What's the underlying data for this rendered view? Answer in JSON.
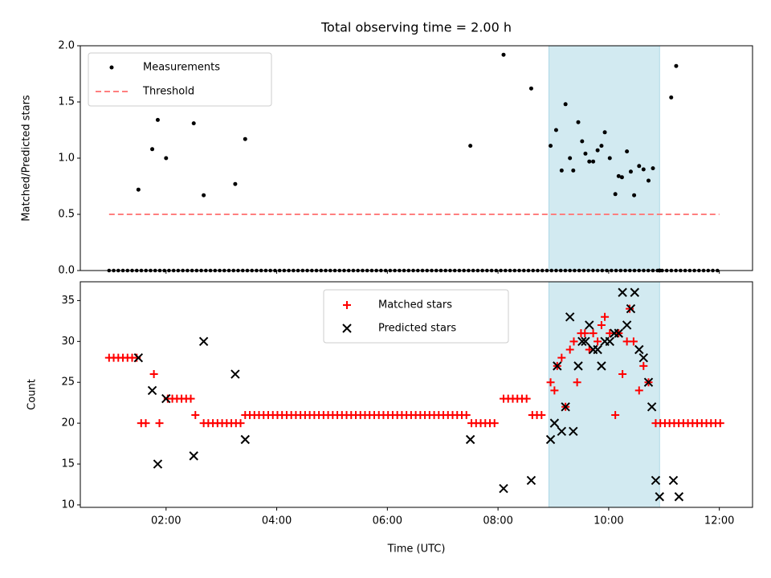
{
  "chart_data": [
    {
      "type": "scatter",
      "title": "Total observing time = 2.00 h",
      "xlabel": "",
      "ylabel": "Matched/Predicted stars",
      "xlim": [
        0.45,
        12.6
      ],
      "ylim": [
        0,
        2.0
      ],
      "yticks": [
        0.0,
        0.5,
        1.0,
        1.5,
        2.0
      ],
      "ytick_labels": [
        "0.0",
        "0.5",
        "1.0",
        "1.5",
        "2.0"
      ],
      "grid": false,
      "legend_position": "top-left",
      "legend": [
        "Measurements",
        "Threshold"
      ],
      "shaded_interval": [
        8.92,
        10.92
      ],
      "colors": {
        "shade": "#add8e6",
        "points": "#000000",
        "threshold": "#ff7f7f"
      },
      "threshold": {
        "name": "Threshold",
        "x": [
          0.97,
          12.0
        ],
        "y": 0.5
      },
      "series": [
        {
          "name": "Measurements",
          "x": [
            1.5,
            1.75,
            1.85,
            2.0,
            2.5,
            2.68,
            3.25,
            3.43,
            7.5,
            8.1,
            8.6,
            8.95,
            9.05,
            9.15,
            9.22,
            9.3,
            9.36,
            9.45,
            9.52,
            9.58,
            9.65,
            9.72,
            9.8,
            9.87,
            9.93,
            10.02,
            10.12,
            10.18,
            10.24,
            10.33,
            10.4,
            10.46,
            10.55,
            10.63,
            10.72,
            10.8,
            10.92,
            11.13,
            11.22
          ],
          "y": [
            0.72,
            1.08,
            1.34,
            1.0,
            1.31,
            0.67,
            0.77,
            1.17,
            1.11,
            1.92,
            1.62,
            1.11,
            1.25,
            0.89,
            1.48,
            1.0,
            0.89,
            1.32,
            1.15,
            1.04,
            0.97,
            0.97,
            1.07,
            1.11,
            1.23,
            1.0,
            0.68,
            0.84,
            0.83,
            1.06,
            0.88,
            0.67,
            0.93,
            0.9,
            0.8,
            0.91,
            0.0,
            1.54,
            1.82
          ]
        },
        {
          "name": "Measurements (zero values)",
          "x_start": 0.97,
          "x_end": 12.0,
          "x_step": 0.0833,
          "y": 0.0
        }
      ]
    },
    {
      "type": "scatter",
      "title": "",
      "xlabel": "Time (UTC)",
      "ylabel": "Count",
      "xlim": [
        0.45,
        12.6
      ],
      "ylim": [
        9.7,
        37.3
      ],
      "xticks": [
        2,
        4,
        6,
        8,
        10,
        12
      ],
      "xtick_labels": [
        "02:00",
        "04:00",
        "06:00",
        "08:00",
        "10:00",
        "12:00"
      ],
      "yticks": [
        10,
        15,
        20,
        25,
        30,
        35
      ],
      "ytick_labels": [
        "10",
        "15",
        "20",
        "25",
        "30",
        "35"
      ],
      "grid": false,
      "legend_position": "top-center",
      "legend": [
        "Matched stars",
        "Predicted stars"
      ],
      "shaded_interval": [
        8.92,
        10.92
      ],
      "colors": {
        "shade": "#add8e6",
        "matched": "#ff0000",
        "predicted": "#000000"
      },
      "series": [
        {
          "name": "Matched stars",
          "constant_runs": [
            {
              "x_start": 0.97,
              "x_end": 1.47,
              "y": 28
            },
            {
              "x_start": 1.55,
              "x_end": 1.7,
              "y": 20
            },
            {
              "x_start": 1.88,
              "x_end": 1.95,
              "y": 20
            },
            {
              "x_start": 2.03,
              "x_end": 2.45,
              "y": 23
            },
            {
              "x_start": 2.53,
              "x_end": 2.6,
              "y": 21
            },
            {
              "x_start": 2.68,
              "x_end": 3.38,
              "y": 20
            },
            {
              "x_start": 3.43,
              "x_end": 7.43,
              "y": 21
            },
            {
              "x_start": 7.52,
              "x_end": 8.0,
              "y": 20
            },
            {
              "x_start": 8.1,
              "x_end": 8.52,
              "y": 23
            },
            {
              "x_start": 8.62,
              "x_end": 8.85,
              "y": 21
            },
            {
              "x_start": 10.85,
              "x_end": 12.05,
              "y": 20
            }
          ],
          "x": [
            1.78,
            8.95,
            9.02,
            9.07,
            9.15,
            9.22,
            9.3,
            9.37,
            9.43,
            9.5,
            9.57,
            9.65,
            9.72,
            9.8,
            9.87,
            9.93,
            10.02,
            10.12,
            10.18,
            10.25,
            10.33,
            10.38,
            10.45,
            10.55,
            10.63,
            10.72
          ],
          "y": [
            26,
            25,
            24,
            27,
            28,
            22,
            29,
            30,
            25,
            31,
            31,
            29,
            31,
            30,
            32,
            33,
            31,
            21,
            31,
            26,
            30,
            34,
            30,
            24,
            27,
            25
          ]
        },
        {
          "name": "Predicted stars",
          "x": [
            1.5,
            1.75,
            1.85,
            2.0,
            2.5,
            2.68,
            3.25,
            3.43,
            7.5,
            8.1,
            8.6,
            8.95,
            9.02,
            9.07,
            9.15,
            9.22,
            9.3,
            9.36,
            9.45,
            9.52,
            9.58,
            9.65,
            9.72,
            9.8,
            9.87,
            9.93,
            10.02,
            10.1,
            10.18,
            10.25,
            10.33,
            10.4,
            10.47,
            10.55,
            10.63,
            10.72,
            10.78,
            10.85,
            10.92,
            11.17,
            11.27
          ],
          "y": [
            28,
            24,
            15,
            23,
            16,
            30,
            26,
            18,
            18,
            12,
            13,
            18,
            20,
            27,
            19,
            22,
            33,
            19,
            27,
            30,
            30,
            32,
            29,
            29,
            27,
            30,
            30,
            31,
            31,
            36,
            32,
            34,
            36,
            29,
            28,
            25,
            22,
            13,
            11,
            13,
            11
          ]
        }
      ]
    }
  ]
}
